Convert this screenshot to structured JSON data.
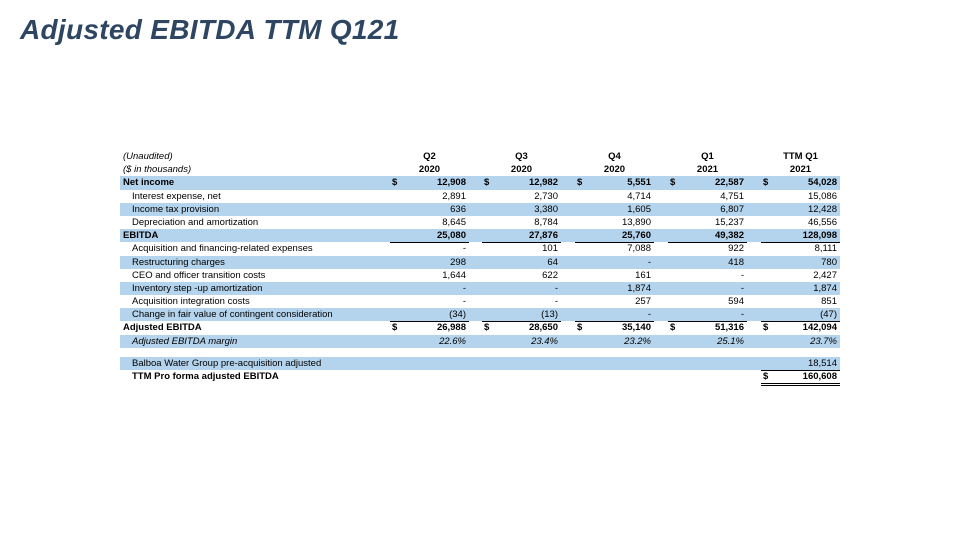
{
  "title": "Adjusted EBITDA TTM Q121",
  "header": {
    "label1": "(Unaudited)",
    "label2": "($ in thousands)",
    "periods": [
      {
        "q": "Q2",
        "y": "2020"
      },
      {
        "q": "Q3",
        "y": "2020"
      },
      {
        "q": "Q4",
        "y": "2020"
      },
      {
        "q": "Q1",
        "y": "2021"
      },
      {
        "q": "TTM Q1",
        "y": "2021"
      }
    ]
  },
  "currency_symbol": "$",
  "rows": [
    {
      "label": "Net income",
      "values": [
        "12,908",
        "12,982",
        "5,551",
        "22,587",
        "54,028"
      ]
    },
    {
      "label": "Interest expense, net",
      "values": [
        "2,891",
        "2,730",
        "4,714",
        "4,751",
        "15,086"
      ]
    },
    {
      "label": "Income tax provision",
      "values": [
        "636",
        "3,380",
        "1,605",
        "6,807",
        "12,428"
      ]
    },
    {
      "label": "Depreciation and amortization",
      "values": [
        "8,645",
        "8,784",
        "13,890",
        "15,237",
        "46,556"
      ]
    },
    {
      "label": "EBITDA",
      "values": [
        "25,080",
        "27,876",
        "25,760",
        "49,382",
        "128,098"
      ]
    },
    {
      "label": "Acquisition and financing-related expenses",
      "values": [
        "-",
        "101",
        "7,088",
        "922",
        "8,111"
      ]
    },
    {
      "label": "Restructuring charges",
      "values": [
        "298",
        "64",
        "-",
        "418",
        "780"
      ]
    },
    {
      "label": "CEO and officer transition costs",
      "values": [
        "1,644",
        "622",
        "161",
        "-",
        "2,427"
      ]
    },
    {
      "label": "Inventory step -up amortization",
      "values": [
        "-",
        "-",
        "1,874",
        "-",
        "1,874"
      ]
    },
    {
      "label": "Acquisition integration costs",
      "values": [
        "-",
        "-",
        "257",
        "594",
        "851"
      ]
    },
    {
      "label": "Change in fair value of contingent consideration",
      "values": [
        "(34)",
        "(13)",
        "-",
        "-",
        "(47)"
      ]
    },
    {
      "label": "Adjusted EBITDA",
      "values": [
        "26,988",
        "28,650",
        "35,140",
        "51,316",
        "142,094"
      ]
    },
    {
      "label": "Adjusted EBITDA margin",
      "values": [
        "22.6%",
        "23.4%",
        "23.2%",
        "25.1%",
        "23.7%"
      ]
    }
  ],
  "balboa": {
    "label": "Balboa Water Group pre-acquisition adjusted",
    "value": "18,514"
  },
  "pro_forma": {
    "label": "TTM Pro forma adjusted EBITDA",
    "value": "160,608"
  }
}
